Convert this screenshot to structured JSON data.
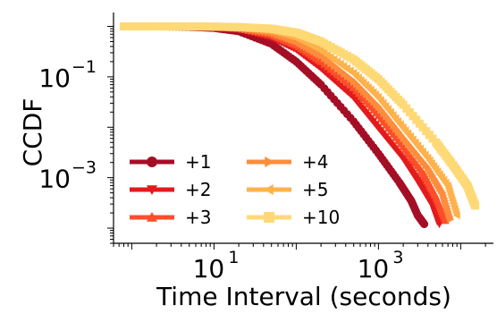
{
  "chart_data": {
    "type": "line",
    "title": "",
    "xlabel": "Time Interval (seconds)",
    "ylabel": "CCDF",
    "xscale": "log",
    "yscale": "log",
    "xlim": [
      0.6,
      25000
    ],
    "ylim": [
      5e-05,
      1.6
    ],
    "xticks": [
      {
        "value": 10,
        "base": "10",
        "exp": "1"
      },
      {
        "value": 1000,
        "base": "10",
        "exp": "3"
      }
    ],
    "yticks": [
      {
        "value": 0.1,
        "base": "10",
        "exp": "−1"
      },
      {
        "value": 0.001,
        "base": "10",
        "exp": "−3"
      }
    ],
    "grid": false,
    "legend_position": "lower-left",
    "legend_columns": 2,
    "series": [
      {
        "name": "+1",
        "color": "#a50f26",
        "marker": "circle",
        "points": [
          [
            1,
            1
          ],
          [
            2,
            1
          ],
          [
            5,
            0.98
          ],
          [
            10,
            0.93
          ],
          [
            20,
            0.8
          ],
          [
            50,
            0.45
          ],
          [
            100,
            0.2
          ],
          [
            200,
            0.07
          ],
          [
            500,
            0.013
          ],
          [
            1000,
            0.003
          ],
          [
            1800,
            0.0008
          ],
          [
            2500,
            0.00035
          ],
          [
            3000,
            0.00018
          ],
          [
            3600,
            0.00012
          ]
        ]
      },
      {
        "name": "+2",
        "color": "#e31a1c",
        "marker": "triangle-down",
        "points": [
          [
            1,
            1
          ],
          [
            2,
            1
          ],
          [
            5,
            0.99
          ],
          [
            10,
            0.96
          ],
          [
            20,
            0.88
          ],
          [
            50,
            0.6
          ],
          [
            100,
            0.35
          ],
          [
            200,
            0.15
          ],
          [
            500,
            0.04
          ],
          [
            1000,
            0.01
          ],
          [
            2000,
            0.0025
          ],
          [
            3000,
            0.0009
          ],
          [
            4500,
            0.0003
          ],
          [
            5500,
            0.00012
          ]
        ]
      },
      {
        "name": "+3",
        "color": "#fc4e2a",
        "marker": "triangle-up",
        "points": [
          [
            1,
            1
          ],
          [
            2,
            1
          ],
          [
            5,
            0.99
          ],
          [
            10,
            0.97
          ],
          [
            20,
            0.9
          ],
          [
            50,
            0.68
          ],
          [
            100,
            0.42
          ],
          [
            200,
            0.2
          ],
          [
            500,
            0.06
          ],
          [
            1000,
            0.017
          ],
          [
            2000,
            0.004
          ],
          [
            3500,
            0.0012
          ],
          [
            5000,
            0.0004
          ],
          [
            6500,
            0.00014
          ]
        ]
      },
      {
        "name": "+4",
        "color": "#fd8d3c",
        "marker": "triangle-right",
        "points": [
          [
            1,
            1
          ],
          [
            2,
            1
          ],
          [
            5,
            0.99
          ],
          [
            10,
            0.98
          ],
          [
            20,
            0.93
          ],
          [
            50,
            0.75
          ],
          [
            100,
            0.5
          ],
          [
            200,
            0.26
          ],
          [
            500,
            0.08
          ],
          [
            1000,
            0.025
          ],
          [
            2000,
            0.006
          ],
          [
            4000,
            0.0015
          ],
          [
            6000,
            0.0005
          ],
          [
            7500,
            0.00015
          ]
        ]
      },
      {
        "name": "+5",
        "color": "#feb24c",
        "marker": "triangle-left",
        "points": [
          [
            1,
            1
          ],
          [
            2,
            1
          ],
          [
            5,
            0.995
          ],
          [
            10,
            0.985
          ],
          [
            20,
            0.95
          ],
          [
            50,
            0.82
          ],
          [
            100,
            0.6
          ],
          [
            200,
            0.34
          ],
          [
            500,
            0.12
          ],
          [
            1000,
            0.04
          ],
          [
            2000,
            0.01
          ],
          [
            4000,
            0.0025
          ],
          [
            7000,
            0.0007
          ],
          [
            9000,
            0.00018
          ]
        ]
      },
      {
        "name": "+10",
        "color": "#fed976",
        "marker": "square",
        "points": [
          [
            0.8,
            1
          ],
          [
            2,
            1
          ],
          [
            5,
            1
          ],
          [
            10,
            0.99
          ],
          [
            20,
            0.97
          ],
          [
            50,
            0.9
          ],
          [
            100,
            0.75
          ],
          [
            200,
            0.5
          ],
          [
            500,
            0.22
          ],
          [
            1000,
            0.09
          ],
          [
            2000,
            0.028
          ],
          [
            5000,
            0.005
          ],
          [
            8000,
            0.0018
          ],
          [
            12000,
            0.0007
          ],
          [
            15000,
            0.00028
          ]
        ]
      }
    ]
  }
}
